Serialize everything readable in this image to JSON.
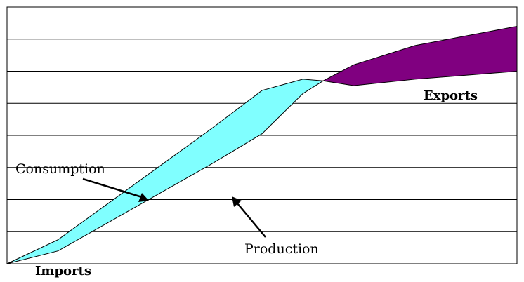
{
  "chart_data": {
    "type": "area",
    "xlim": [
      0,
      100
    ],
    "ylim": [
      0,
      8
    ],
    "grid": true,
    "x": [
      0,
      10,
      20,
      30,
      40,
      50,
      58,
      62,
      68,
      80,
      100
    ],
    "series": [
      {
        "name": "Consumption",
        "values": [
          0,
          0.75,
          1.9,
          3.05,
          4.2,
          5.4,
          5.75,
          5.7,
          6.2,
          6.8,
          7.4
        ]
      },
      {
        "name": "Production",
        "values": [
          0,
          0.4,
          1.3,
          2.2,
          3.1,
          4.05,
          5.3,
          5.7,
          5.55,
          5.75,
          6.0
        ]
      }
    ],
    "regions": [
      {
        "label": "Imports",
        "color": "#80FFFF"
      },
      {
        "label": "Exports",
        "color": "#800080"
      }
    ],
    "annotations": [
      "Consumption",
      "Production"
    ]
  }
}
